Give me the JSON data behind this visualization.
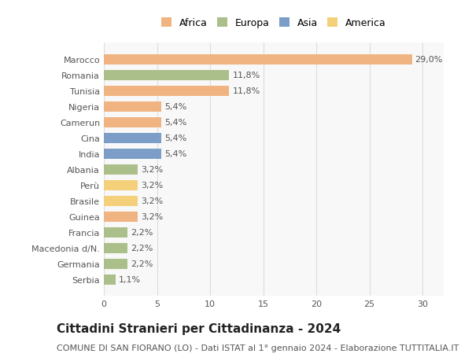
{
  "categories": [
    "Marocco",
    "Romania",
    "Tunisia",
    "Nigeria",
    "Camerun",
    "Cina",
    "India",
    "Albania",
    "Perù",
    "Brasile",
    "Guinea",
    "Francia",
    "Macedonia d/N.",
    "Germania",
    "Serbia"
  ],
  "values": [
    29.0,
    11.8,
    11.8,
    5.4,
    5.4,
    5.4,
    5.4,
    3.2,
    3.2,
    3.2,
    3.2,
    2.2,
    2.2,
    2.2,
    1.1
  ],
  "labels": [
    "29,0%",
    "11,8%",
    "11,8%",
    "5,4%",
    "5,4%",
    "5,4%",
    "5,4%",
    "3,2%",
    "3,2%",
    "3,2%",
    "3,2%",
    "2,2%",
    "2,2%",
    "2,2%",
    "1,1%"
  ],
  "continents": [
    "Africa",
    "Europa",
    "Africa",
    "Africa",
    "Africa",
    "Asia",
    "Asia",
    "Europa",
    "America",
    "America",
    "Africa",
    "Europa",
    "Europa",
    "Europa",
    "Europa"
  ],
  "colors": {
    "Africa": "#F0B482",
    "Europa": "#ABBF8A",
    "Asia": "#7B9DC7",
    "America": "#F5D07A"
  },
  "legend_order": [
    "Africa",
    "Europa",
    "Asia",
    "America"
  ],
  "title": "Cittadini Stranieri per Cittadinanza - 2024",
  "subtitle": "COMUNE DI SAN FIORANO (LO) - Dati ISTAT al 1° gennaio 2024 - Elaborazione TUTTITALIA.IT",
  "xlim": [
    0,
    32
  ],
  "xticks": [
    0,
    5,
    10,
    15,
    20,
    25,
    30
  ],
  "background_color": "#FFFFFF",
  "plot_background": "#F8F8F8",
  "grid_color": "#DDDDDD",
  "bar_height": 0.65,
  "title_fontsize": 11,
  "subtitle_fontsize": 8,
  "label_fontsize": 8,
  "tick_fontsize": 8,
  "legend_fontsize": 9
}
